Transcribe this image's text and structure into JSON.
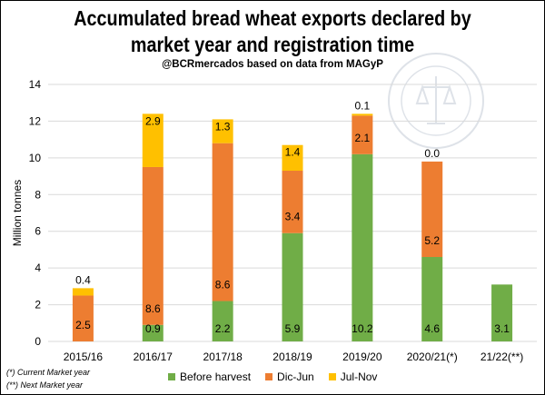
{
  "title_line1": "Accumulated bread wheat exports declared by",
  "title_line2": "market year and registration time",
  "subtitle": "@BCRmercados based on data from MAGyP",
  "footnotes": [
    "(*) Current Market year",
    "(**) Next Market year"
  ],
  "seal_text": "BOLSA DE COMERCIO DE ROSARIO",
  "colors": {
    "before_harvest": "#70AD47",
    "dic_jun": "#ED7D31",
    "jul_nov": "#FFC000",
    "grid": "#D9D9D9"
  },
  "chart_data": {
    "type": "bar",
    "stacked": true,
    "categories": [
      "2015/16",
      "2016/17",
      "2017/18",
      "2018/19",
      "2019/20",
      "2020/21(*)",
      "21/22(**)"
    ],
    "series": [
      {
        "name": "Before harvest",
        "values": [
          0,
          0.9,
          2.2,
          5.9,
          10.2,
          4.6,
          3.1
        ],
        "labels": [
          "",
          "0.9",
          "2.2",
          "5.9",
          "10.2",
          "4.6",
          "3.1"
        ]
      },
      {
        "name": "Dic-Jun",
        "values": [
          2.5,
          8.6,
          8.6,
          3.4,
          2.1,
          5.2,
          0
        ],
        "labels": [
          "2.5",
          "8.6",
          "8.6",
          "3.4",
          "2.1",
          "5.2",
          ""
        ]
      },
      {
        "name": "Jul-Nov",
        "values": [
          0.4,
          2.9,
          1.3,
          1.4,
          0.1,
          0.0,
          0
        ],
        "labels": [
          "0.4",
          "2.9",
          "1.3",
          "1.4",
          "0.1",
          "0.0",
          ""
        ]
      }
    ],
    "ylabel": "Million tonnes",
    "ylim": [
      0,
      14
    ],
    "yticks": [
      0,
      2,
      4,
      6,
      8,
      10,
      12,
      14
    ],
    "grid": true,
    "legend_position": "bottom"
  }
}
